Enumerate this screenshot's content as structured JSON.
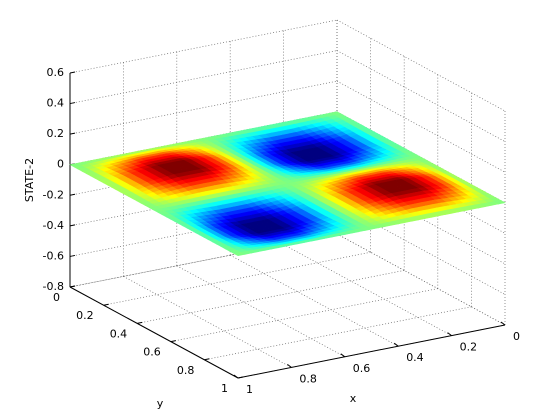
{
  "chart_data": {
    "type": "surface",
    "xlabel": "x",
    "ylabel": "y",
    "zlabel": "STATE-2",
    "x": [
      0,
      0.1,
      0.2,
      0.3,
      0.4,
      0.5,
      0.6,
      0.7,
      0.8,
      0.9,
      1
    ],
    "y": [
      0,
      0.1,
      0.2,
      0.3,
      0.4,
      0.5,
      0.6,
      0.7,
      0.8,
      0.9,
      1
    ],
    "z": [
      [
        0,
        0,
        0,
        0,
        0,
        0,
        0,
        0,
        0,
        0,
        0
      ],
      [
        0,
        -0.017,
        -0.028,
        -0.028,
        -0.017,
        0,
        0.017,
        0.028,
        0.028,
        0.017,
        0
      ],
      [
        0,
        -0.028,
        -0.045,
        -0.045,
        -0.028,
        0,
        0.028,
        0.045,
        0.045,
        0.028,
        0
      ],
      [
        0,
        -0.028,
        -0.045,
        -0.045,
        -0.028,
        0,
        0.028,
        0.045,
        0.045,
        0.028,
        0
      ],
      [
        0,
        -0.017,
        -0.028,
        -0.028,
        -0.017,
        0,
        0.017,
        0.028,
        0.028,
        0.017,
        0
      ],
      [
        0,
        0,
        0,
        0,
        0,
        0,
        0,
        0,
        0,
        0,
        0
      ],
      [
        0,
        0.017,
        0.028,
        0.028,
        0.017,
        0,
        -0.017,
        -0.028,
        -0.028,
        -0.017,
        0
      ],
      [
        0,
        0.028,
        0.045,
        0.045,
        0.028,
        0,
        -0.028,
        -0.045,
        -0.045,
        -0.028,
        0
      ],
      [
        0,
        0.028,
        0.045,
        0.045,
        0.028,
        0,
        -0.028,
        -0.045,
        -0.045,
        -0.028,
        0
      ],
      [
        0,
        0.017,
        0.028,
        0.028,
        0.017,
        0,
        -0.017,
        -0.028,
        -0.028,
        -0.017,
        0
      ],
      [
        0,
        0,
        0,
        0,
        0,
        0,
        0,
        0,
        0,
        0,
        0
      ]
    ],
    "xlim": [
      0,
      1
    ],
    "ylim": [
      0,
      1
    ],
    "zlim": [
      -0.8,
      0.6
    ],
    "xticks": [
      0,
      0.2,
      0.4,
      0.6,
      0.8,
      1
    ],
    "yticks": [
      0,
      0.2,
      0.4,
      0.6,
      0.8,
      1
    ],
    "zticks": [
      -0.8,
      -0.6,
      -0.4,
      -0.2,
      0,
      0.2,
      0.4,
      0.6
    ],
    "grid": true,
    "colormap": "jet"
  }
}
